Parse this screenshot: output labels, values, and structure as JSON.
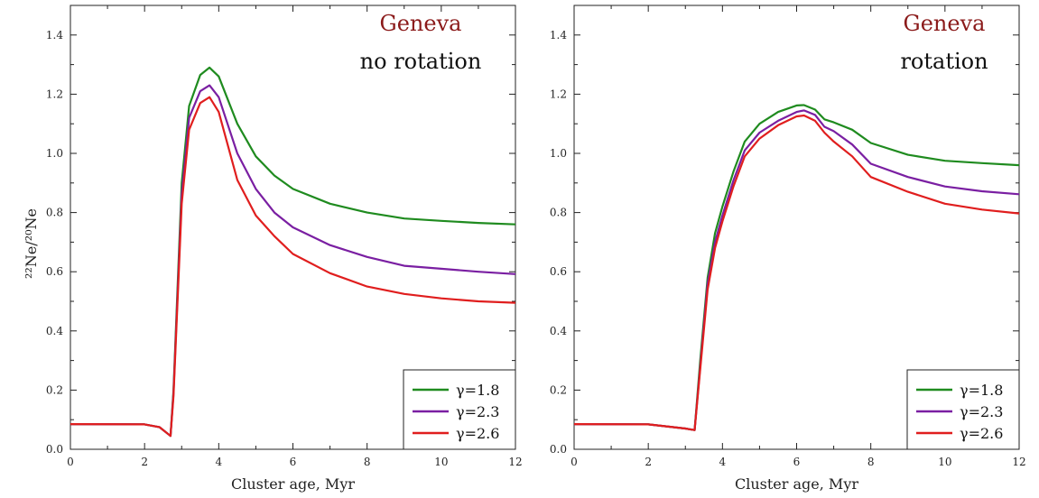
{
  "chart_data": [
    {
      "type": "line",
      "annotation_source": "Geneva",
      "annotation_mode": "no rotation",
      "xlabel": "Cluster age, Myr",
      "ylabel": "²²Ne/²⁰Ne",
      "xlim": [
        0,
        12
      ],
      "ylim": [
        0,
        1.5
      ],
      "xticks": [
        0,
        2,
        4,
        6,
        8,
        10,
        12
      ],
      "yticks": [
        0.0,
        0.2,
        0.4,
        0.6,
        0.8,
        1.0,
        1.2,
        1.4
      ],
      "grid": false,
      "legend_position": "bottom-right",
      "x": [
        0,
        2.0,
        2.4,
        2.7,
        2.78,
        3.0,
        3.2,
        3.5,
        3.75,
        4.0,
        4.5,
        5.0,
        5.5,
        6.0,
        7.0,
        8.0,
        9.0,
        10.0,
        11.0,
        12.0
      ],
      "series": [
        {
          "name": "γ=1.8",
          "color": "#1f8b1f",
          "values": [
            0.085,
            0.084,
            0.075,
            0.045,
            0.2,
            0.9,
            1.16,
            1.265,
            1.29,
            1.26,
            1.1,
            0.99,
            0.925,
            0.88,
            0.83,
            0.8,
            0.78,
            0.772,
            0.765,
            0.76
          ]
        },
        {
          "name": "γ=2.3",
          "color": "#7a1fa2",
          "values": [
            0.085,
            0.084,
            0.075,
            0.045,
            0.19,
            0.86,
            1.12,
            1.21,
            1.23,
            1.19,
            1.0,
            0.88,
            0.8,
            0.75,
            0.69,
            0.65,
            0.62,
            0.61,
            0.6,
            0.592
          ]
        },
        {
          "name": "γ=2.6",
          "color": "#e01e1e",
          "values": [
            0.085,
            0.084,
            0.075,
            0.045,
            0.18,
            0.83,
            1.08,
            1.17,
            1.19,
            1.14,
            0.91,
            0.79,
            0.72,
            0.66,
            0.595,
            0.55,
            0.525,
            0.51,
            0.5,
            0.495
          ]
        }
      ]
    },
    {
      "type": "line",
      "annotation_source": "Geneva",
      "annotation_mode": "rotation",
      "xlabel": "Cluster age, Myr",
      "ylabel": "",
      "xlim": [
        0,
        12
      ],
      "ylim": [
        0,
        1.5
      ],
      "xticks": [
        0,
        2,
        4,
        6,
        8,
        10,
        12
      ],
      "yticks": [
        0.0,
        0.2,
        0.4,
        0.6,
        0.8,
        1.0,
        1.2,
        1.4
      ],
      "grid": false,
      "legend_position": "bottom-right",
      "x": [
        0,
        2.0,
        3.0,
        3.25,
        3.4,
        3.6,
        3.8,
        4.0,
        4.3,
        4.6,
        5.0,
        5.5,
        6.0,
        6.2,
        6.5,
        6.75,
        7.0,
        7.5,
        8.0,
        9.0,
        10.0,
        11.0,
        12.0
      ],
      "series": [
        {
          "name": "γ=1.8",
          "color": "#1f8b1f",
          "values": [
            0.085,
            0.084,
            0.07,
            0.065,
            0.3,
            0.58,
            0.73,
            0.82,
            0.94,
            1.04,
            1.1,
            1.14,
            1.162,
            1.163,
            1.148,
            1.115,
            1.105,
            1.08,
            1.035,
            0.995,
            0.975,
            0.967,
            0.96
          ]
        },
        {
          "name": "γ=2.3",
          "color": "#7a1fa2",
          "values": [
            0.085,
            0.084,
            0.07,
            0.065,
            0.28,
            0.56,
            0.7,
            0.79,
            0.91,
            1.01,
            1.07,
            1.11,
            1.14,
            1.145,
            1.13,
            1.09,
            1.075,
            1.03,
            0.965,
            0.92,
            0.888,
            0.872,
            0.862
          ]
        },
        {
          "name": "γ=2.6",
          "color": "#e01e1e",
          "values": [
            0.085,
            0.084,
            0.07,
            0.065,
            0.27,
            0.54,
            0.68,
            0.77,
            0.89,
            0.99,
            1.05,
            1.095,
            1.125,
            1.128,
            1.11,
            1.07,
            1.04,
            0.99,
            0.92,
            0.87,
            0.83,
            0.81,
            0.797
          ]
        }
      ]
    }
  ]
}
